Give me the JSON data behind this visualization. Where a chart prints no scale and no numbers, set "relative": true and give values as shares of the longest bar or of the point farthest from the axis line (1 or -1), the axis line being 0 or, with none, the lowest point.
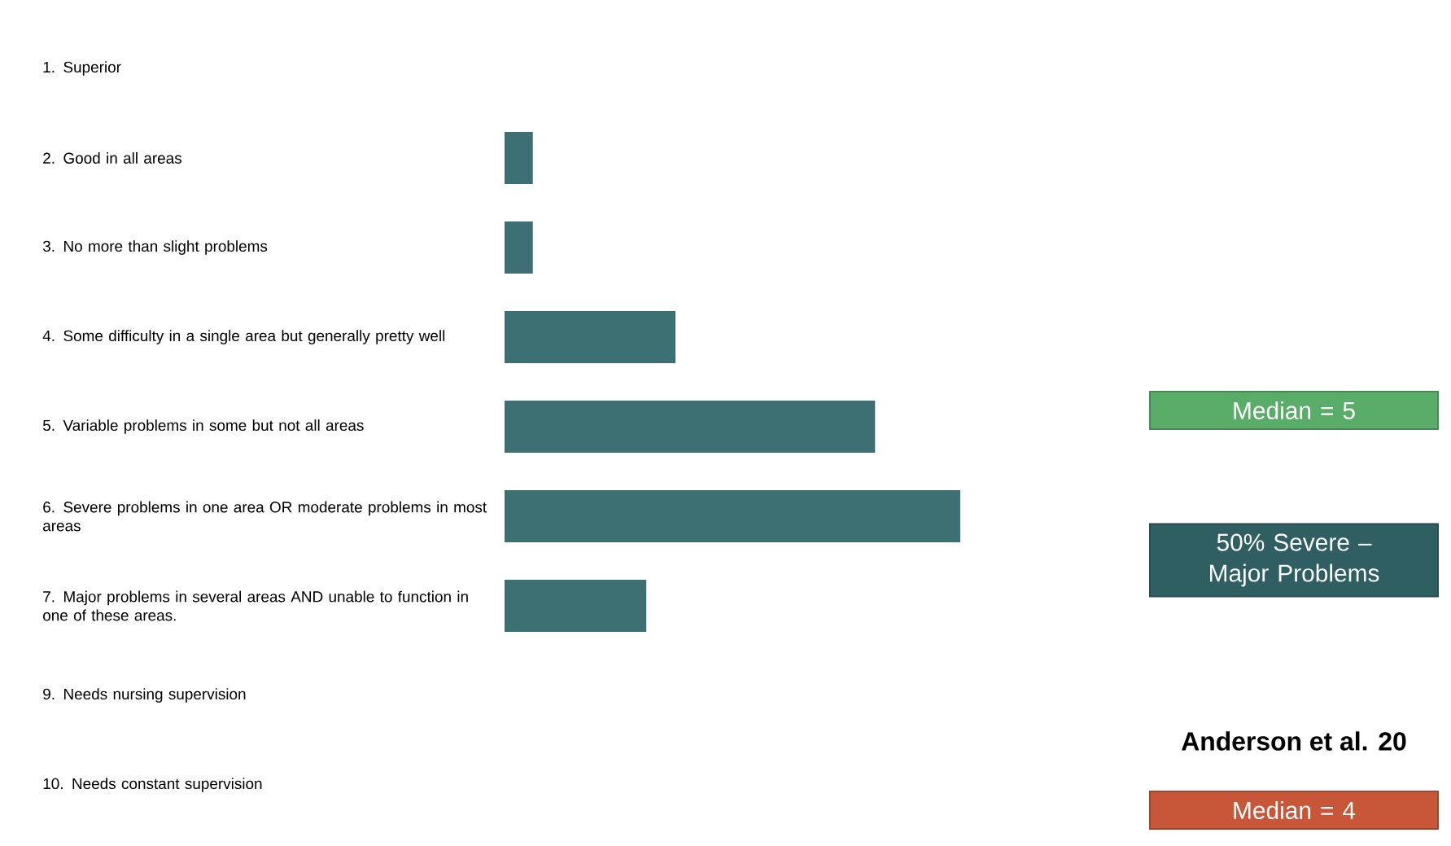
{
  "chart_data": {
    "type": "bar",
    "orientation": "horizontal",
    "relative": true,
    "color": "#3d7072",
    "categories": [
      "1. Superior",
      "2. Good in all areas",
      "3. No more than slight problems",
      "4. Some difficulty in a single area but generally pretty well",
      "5. Variable problems in some but not all areas",
      "6. Severe problems in one area OR moderate problems in most areas",
      "7. Major problems in several areas AND unable to function in one of these areas.",
      "9. Needs nursing supervision",
      "10. Needs constant supervision"
    ],
    "values": [
      0,
      0.062,
      0.062,
      0.375,
      0.813,
      1,
      0.311,
      0,
      0
    ],
    "annotations": [
      "Median = 5",
      "50% Severe – Major Problems",
      "Anderson et al. 20",
      "Median = 4"
    ]
  }
}
